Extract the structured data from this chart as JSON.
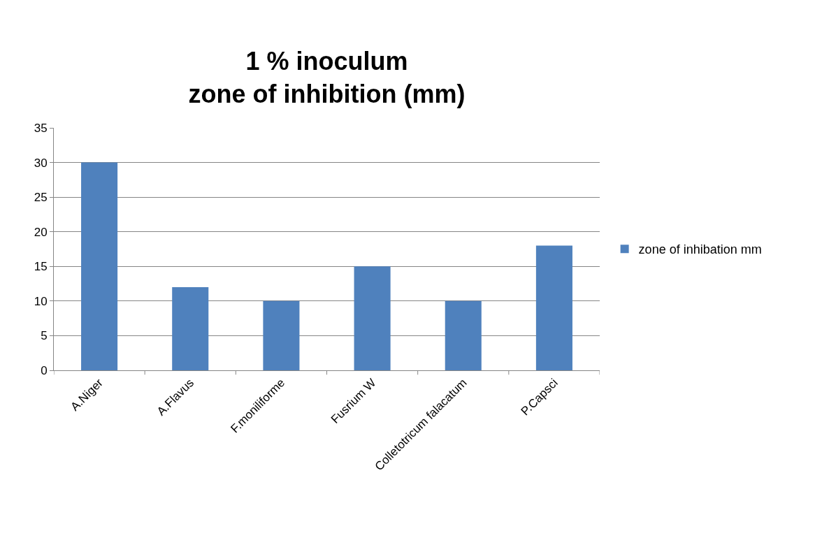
{
  "chart_data": {
    "type": "bar",
    "title": "1 % inoculum\nzone of inhibition (mm)",
    "categories": [
      "A.Niger",
      "A.Flavus",
      "F.moniliforme",
      "Fusrium W",
      "Colletotricum falacatum",
      "P.Capsci"
    ],
    "series": [
      {
        "name": "zone of inhibation mm",
        "color": "#4f81bd",
        "values": [
          30,
          12,
          10,
          15,
          10,
          18
        ]
      }
    ],
    "ylim": [
      0,
      35
    ],
    "yticks": [
      0,
      5,
      10,
      15,
      20,
      25,
      30,
      35
    ],
    "grid": "y",
    "legend": "right"
  }
}
